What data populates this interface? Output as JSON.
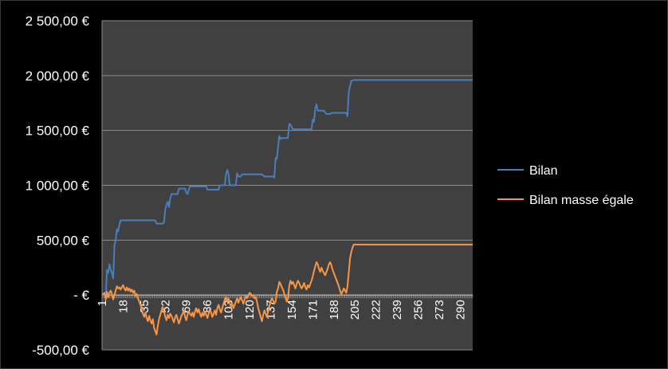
{
  "chart_data": {
    "type": "line",
    "title": "",
    "xlabel": "",
    "ylabel": "",
    "ylim": [
      -500,
      2500
    ],
    "xlim": [
      1,
      300
    ],
    "yticks": [
      {
        "value": 2500,
        "label": "2 500,00 €"
      },
      {
        "value": 2000,
        "label": "2 000,00 €"
      },
      {
        "value": 1500,
        "label": "1 500,00 €"
      },
      {
        "value": 1000,
        "label": "1 000,00 €"
      },
      {
        "value": 500,
        "label": "500,00 €"
      },
      {
        "value": 0,
        "label": "-   €"
      },
      {
        "value": -500,
        "label": "-500,00 €"
      }
    ],
    "xticks": [
      "1",
      "18",
      "35",
      "52",
      "69",
      "86",
      "103",
      "120",
      "137",
      "154",
      "171",
      "188",
      "205",
      "222",
      "239",
      "256",
      "273",
      "290"
    ],
    "grid": true,
    "legend_position": "right",
    "colors": {
      "plot_background": "#404040",
      "page_background": "#000000",
      "gridline": "#8c8c8c",
      "text": "#ffffff"
    },
    "series": [
      {
        "name": "Bilan",
        "color": "#4a7ebb",
        "points": [
          [
            1,
            0
          ],
          [
            3,
            0
          ],
          [
            4,
            -20
          ],
          [
            5,
            230
          ],
          [
            6,
            200
          ],
          [
            7,
            280
          ],
          [
            8,
            230
          ],
          [
            9,
            200
          ],
          [
            10,
            150
          ],
          [
            11,
            450
          ],
          [
            12,
            500
          ],
          [
            13,
            600
          ],
          [
            14,
            580
          ],
          [
            15,
            640
          ],
          [
            16,
            680
          ],
          [
            17,
            680
          ],
          [
            20,
            680
          ],
          [
            25,
            680
          ],
          [
            30,
            680
          ],
          [
            35,
            680
          ],
          [
            40,
            680
          ],
          [
            44,
            680
          ],
          [
            45,
            650
          ],
          [
            50,
            650
          ],
          [
            51,
            660
          ],
          [
            52,
            780
          ],
          [
            53,
            820
          ],
          [
            54,
            850
          ],
          [
            55,
            800
          ],
          [
            56,
            880
          ],
          [
            57,
            920
          ],
          [
            58,
            920
          ],
          [
            62,
            920
          ],
          [
            63,
            970
          ],
          [
            65,
            970
          ],
          [
            68,
            970
          ],
          [
            69,
            930
          ],
          [
            70,
            920
          ],
          [
            71,
            960
          ],
          [
            72,
            990
          ],
          [
            75,
            990
          ],
          [
            80,
            990
          ],
          [
            85,
            990
          ],
          [
            86,
            960
          ],
          [
            90,
            960
          ],
          [
            95,
            960
          ],
          [
            96,
            1000
          ],
          [
            98,
            1000
          ],
          [
            100,
            1000
          ],
          [
            101,
            1100
          ],
          [
            102,
            1140
          ],
          [
            103,
            1100
          ],
          [
            104,
            1000
          ],
          [
            105,
            1000
          ],
          [
            108,
            1000
          ],
          [
            109,
            1010
          ],
          [
            110,
            1110
          ],
          [
            111,
            1080
          ],
          [
            113,
            1080
          ],
          [
            114,
            1100
          ],
          [
            118,
            1100
          ],
          [
            120,
            1100
          ],
          [
            125,
            1100
          ],
          [
            130,
            1100
          ],
          [
            132,
            1080
          ],
          [
            135,
            1080
          ],
          [
            139,
            1080
          ],
          [
            140,
            1070
          ],
          [
            141,
            1250
          ],
          [
            142,
            1240
          ],
          [
            143,
            1350
          ],
          [
            144,
            1450
          ],
          [
            145,
            1420
          ],
          [
            146,
            1430
          ],
          [
            150,
            1430
          ],
          [
            151,
            1430
          ],
          [
            152,
            1560
          ],
          [
            153,
            1550
          ],
          [
            155,
            1510
          ],
          [
            160,
            1510
          ],
          [
            165,
            1510
          ],
          [
            170,
            1510
          ],
          [
            171,
            1600
          ],
          [
            172,
            1580
          ],
          [
            173,
            1700
          ],
          [
            174,
            1740
          ],
          [
            175,
            1680
          ],
          [
            177,
            1680
          ],
          [
            180,
            1680
          ],
          [
            182,
            1650
          ],
          [
            185,
            1650
          ],
          [
            186,
            1660
          ],
          [
            190,
            1660
          ],
          [
            195,
            1660
          ],
          [
            198,
            1660
          ],
          [
            199,
            1630
          ],
          [
            200,
            1850
          ],
          [
            201,
            1900
          ],
          [
            202,
            1950
          ],
          [
            204,
            1960
          ],
          [
            210,
            1960
          ],
          [
            220,
            1960
          ],
          [
            240,
            1960
          ],
          [
            260,
            1960
          ],
          [
            280,
            1960
          ],
          [
            300,
            1960
          ]
        ]
      },
      {
        "name": "Bilan masse égale",
        "color": "#f79646",
        "points": [
          [
            1,
            0
          ],
          [
            3,
            20
          ],
          [
            4,
            -40
          ],
          [
            5,
            30
          ],
          [
            6,
            -20
          ],
          [
            7,
            20
          ],
          [
            8,
            40
          ],
          [
            9,
            10
          ],
          [
            10,
            -40
          ],
          [
            11,
            0
          ],
          [
            12,
            40
          ],
          [
            13,
            80
          ],
          [
            14,
            60
          ],
          [
            15,
            70
          ],
          [
            16,
            50
          ],
          [
            17,
            70
          ],
          [
            18,
            90
          ],
          [
            19,
            60
          ],
          [
            20,
            40
          ],
          [
            21,
            70
          ],
          [
            22,
            40
          ],
          [
            23,
            60
          ],
          [
            24,
            30
          ],
          [
            25,
            50
          ],
          [
            26,
            20
          ],
          [
            27,
            40
          ],
          [
            28,
            -10
          ],
          [
            29,
            10
          ],
          [
            30,
            -30
          ],
          [
            31,
            -60
          ],
          [
            32,
            -90
          ],
          [
            33,
            -130
          ],
          [
            34,
            -170
          ],
          [
            35,
            -200
          ],
          [
            36,
            -160
          ],
          [
            37,
            -210
          ],
          [
            38,
            -240
          ],
          [
            39,
            -190
          ],
          [
            40,
            -230
          ],
          [
            41,
            -260
          ],
          [
            42,
            -220
          ],
          [
            43,
            -300
          ],
          [
            44,
            -330
          ],
          [
            45,
            -360
          ],
          [
            46,
            -280
          ],
          [
            47,
            -220
          ],
          [
            48,
            -180
          ],
          [
            49,
            -140
          ],
          [
            50,
            -110
          ],
          [
            51,
            -150
          ],
          [
            52,
            -200
          ],
          [
            53,
            -230
          ],
          [
            54,
            -180
          ],
          [
            55,
            -210
          ],
          [
            56,
            -170
          ],
          [
            57,
            -190
          ],
          [
            58,
            -220
          ],
          [
            59,
            -250
          ],
          [
            60,
            -200
          ],
          [
            61,
            -180
          ],
          [
            62,
            -220
          ],
          [
            63,
            -260
          ],
          [
            64,
            -230
          ],
          [
            65,
            -190
          ],
          [
            66,
            -170
          ],
          [
            67,
            -140
          ],
          [
            68,
            -200
          ],
          [
            69,
            -230
          ],
          [
            70,
            -180
          ],
          [
            71,
            -150
          ],
          [
            72,
            -170
          ],
          [
            73,
            -190
          ],
          [
            74,
            -160
          ],
          [
            75,
            -200
          ],
          [
            76,
            -150
          ],
          [
            77,
            -120
          ],
          [
            78,
            -160
          ],
          [
            79,
            -130
          ],
          [
            80,
            -170
          ],
          [
            81,
            -200
          ],
          [
            82,
            -160
          ],
          [
            83,
            -190
          ],
          [
            84,
            -150
          ],
          [
            85,
            -180
          ],
          [
            86,
            -210
          ],
          [
            87,
            -170
          ],
          [
            88,
            -130
          ],
          [
            89,
            -160
          ],
          [
            90,
            -200
          ],
          [
            91,
            -170
          ],
          [
            92,
            -140
          ],
          [
            93,
            -180
          ],
          [
            94,
            -120
          ],
          [
            95,
            -90
          ],
          [
            96,
            -130
          ],
          [
            97,
            -160
          ],
          [
            98,
            -120
          ],
          [
            99,
            -80
          ],
          [
            100,
            -40
          ],
          [
            101,
            -20
          ],
          [
            102,
            -60
          ],
          [
            103,
            -30
          ],
          [
            104,
            -70
          ],
          [
            105,
            -110
          ],
          [
            106,
            -80
          ],
          [
            107,
            -120
          ],
          [
            108,
            -90
          ],
          [
            109,
            -60
          ],
          [
            110,
            -30
          ],
          [
            111,
            -70
          ],
          [
            112,
            -40
          ],
          [
            113,
            -20
          ],
          [
            114,
            -50
          ],
          [
            115,
            -80
          ],
          [
            116,
            -40
          ],
          [
            117,
            -10
          ],
          [
            118,
            -30
          ],
          [
            119,
            0
          ],
          [
            120,
            20
          ],
          [
            121,
            10
          ],
          [
            122,
            -10
          ],
          [
            123,
            0
          ],
          [
            124,
            -30
          ],
          [
            125,
            -20
          ],
          [
            126,
            -60
          ],
          [
            127,
            -120
          ],
          [
            128,
            -160
          ],
          [
            129,
            -200
          ],
          [
            130,
            -240
          ],
          [
            131,
            -180
          ],
          [
            132,
            -140
          ],
          [
            133,
            -170
          ],
          [
            134,
            -200
          ],
          [
            135,
            -150
          ],
          [
            136,
            -100
          ],
          [
            137,
            -60
          ],
          [
            138,
            -30
          ],
          [
            139,
            -50
          ],
          [
            140,
            -80
          ],
          [
            141,
            -60
          ],
          [
            142,
            30
          ],
          [
            143,
            60
          ],
          [
            144,
            120
          ],
          [
            145,
            100
          ],
          [
            146,
            70
          ],
          [
            147,
            50
          ],
          [
            148,
            10
          ],
          [
            149,
            -20
          ],
          [
            150,
            -60
          ],
          [
            151,
            -30
          ],
          [
            152,
            80
          ],
          [
            153,
            130
          ],
          [
            154,
            100
          ],
          [
            155,
            120
          ],
          [
            156,
            90
          ],
          [
            157,
            60
          ],
          [
            158,
            100
          ],
          [
            159,
            130
          ],
          [
            160,
            110
          ],
          [
            161,
            80
          ],
          [
            162,
            60
          ],
          [
            163,
            80
          ],
          [
            164,
            110
          ],
          [
            165,
            70
          ],
          [
            166,
            50
          ],
          [
            167,
            90
          ],
          [
            168,
            70
          ],
          [
            169,
            100
          ],
          [
            170,
            130
          ],
          [
            171,
            170
          ],
          [
            172,
            220
          ],
          [
            173,
            260
          ],
          [
            174,
            300
          ],
          [
            175,
            280
          ],
          [
            176,
            240
          ],
          [
            177,
            210
          ],
          [
            178,
            250
          ],
          [
            179,
            220
          ],
          [
            180,
            200
          ],
          [
            181,
            180
          ],
          [
            182,
            210
          ],
          [
            183,
            240
          ],
          [
            184,
            280
          ],
          [
            185,
            300
          ],
          [
            186,
            270
          ],
          [
            187,
            230
          ],
          [
            188,
            200
          ],
          [
            189,
            170
          ],
          [
            190,
            140
          ],
          [
            191,
            110
          ],
          [
            192,
            80
          ],
          [
            193,
            40
          ],
          [
            194,
            10
          ],
          [
            195,
            30
          ],
          [
            196,
            60
          ],
          [
            197,
            40
          ],
          [
            198,
            20
          ],
          [
            199,
            80
          ],
          [
            200,
            200
          ],
          [
            201,
            330
          ],
          [
            202,
            390
          ],
          [
            203,
            430
          ],
          [
            204,
            460
          ],
          [
            205,
            460
          ],
          [
            210,
            460
          ],
          [
            220,
            460
          ],
          [
            240,
            460
          ],
          [
            260,
            460
          ],
          [
            280,
            460
          ],
          [
            300,
            460
          ]
        ]
      }
    ]
  }
}
